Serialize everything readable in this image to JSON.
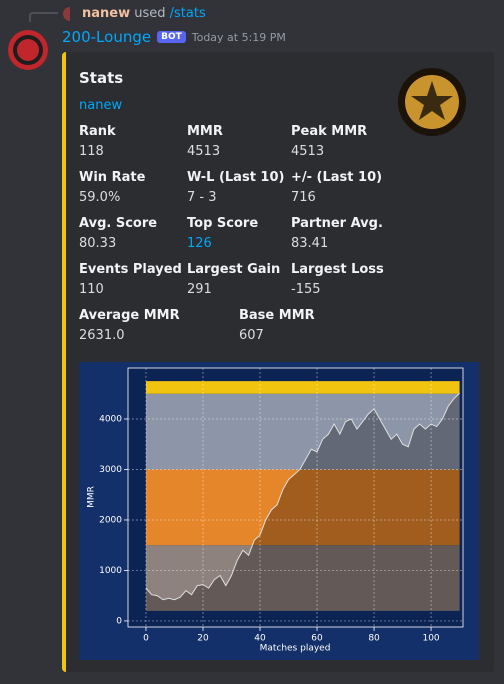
{
  "reply": {
    "user": "nanew",
    "action": "used",
    "command": "/stats"
  },
  "message": {
    "author": "200-Lounge",
    "badge": "BOT",
    "timestamp": "Today at 5:19 PM"
  },
  "embed": {
    "title": "Stats",
    "link": "nanew",
    "fields": [
      {
        "name": "Rank",
        "value": "118"
      },
      {
        "name": "MMR",
        "value": "4513"
      },
      {
        "name": "Peak MMR",
        "value": "4513"
      },
      {
        "name": "Win Rate",
        "value": "59.0%"
      },
      {
        "name": "W-L (Last 10)",
        "value": "7 - 3"
      },
      {
        "name": "+/- (Last 10)",
        "value": "716"
      },
      {
        "name": "Avg. Score",
        "value": "80.33"
      },
      {
        "name": "Top Score",
        "value": "126"
      },
      {
        "name": "Partner Avg.",
        "value": "83.41"
      },
      {
        "name": "Events Played",
        "value": "110"
      },
      {
        "name": "Largest Gain",
        "value": "291"
      },
      {
        "name": "Largest Loss",
        "value": "-155"
      },
      {
        "name": "Average MMR",
        "value": "2631.0"
      },
      {
        "name": "Base MMR",
        "value": "607"
      }
    ]
  },
  "chart_data": {
    "type": "line",
    "x_label": "Matches played",
    "y_label": "MMR",
    "x": [
      0,
      2,
      4,
      6,
      8,
      10,
      12,
      14,
      16,
      18,
      20,
      22,
      24,
      26,
      28,
      30,
      32,
      34,
      36,
      38,
      40,
      42,
      44,
      46,
      48,
      50,
      52,
      54,
      56,
      58,
      60,
      62,
      64,
      66,
      68,
      70,
      72,
      74,
      76,
      78,
      80,
      82,
      84,
      86,
      88,
      90,
      92,
      94,
      96,
      98,
      100,
      102,
      104,
      106,
      108,
      110
    ],
    "series": [
      {
        "color": "#e0e0e0",
        "values": [
          650,
          520,
          500,
          420,
          450,
          420,
          470,
          600,
          520,
          700,
          720,
          650,
          820,
          900,
          700,
          900,
          1200,
          1400,
          1300,
          1600,
          1700,
          2000,
          2200,
          2300,
          2600,
          2800,
          2900,
          3000,
          3200,
          3400,
          3350,
          3600,
          3700,
          3900,
          3700,
          3950,
          4000,
          3800,
          3950,
          4100,
          4200,
          4000,
          3800,
          3600,
          3700,
          3500,
          3450,
          3800,
          3900,
          3800,
          3900,
          3850,
          4000,
          4250,
          4400,
          4513
        ]
      }
    ],
    "bands": [
      {
        "from": 200,
        "to": 1500,
        "color": "#8e827e"
      },
      {
        "from": 1500,
        "to": 3000,
        "color": "#e6862a"
      },
      {
        "from": 3000,
        "to": 4500,
        "color": "#8d95a8"
      },
      {
        "from": 4500,
        "to": 4750,
        "color": "#f1c40f"
      }
    ],
    "xlim": [
      -6.3,
      111.2
    ],
    "ylim": [
      -120,
      5010
    ],
    "xticks": [
      0,
      20,
      40,
      60,
      80,
      100
    ],
    "yticks": [
      0,
      1000,
      2000,
      3000,
      4000
    ],
    "grid": true
  }
}
